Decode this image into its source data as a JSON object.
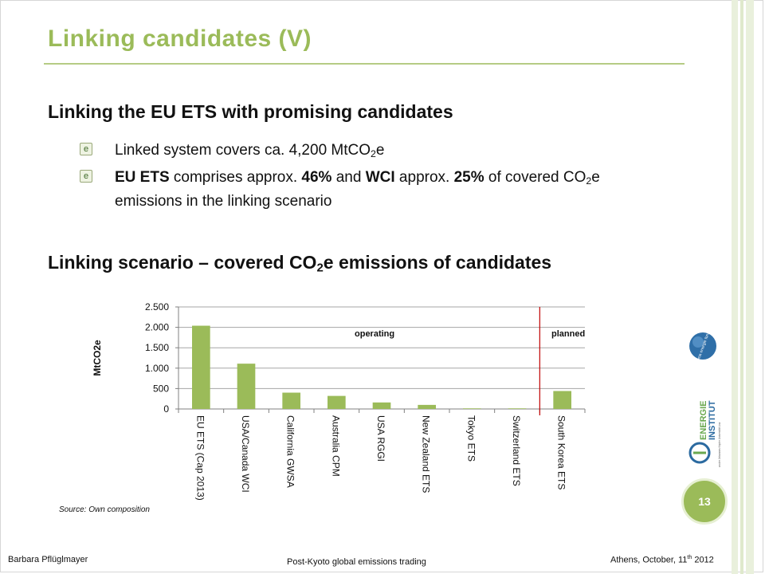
{
  "slide": {
    "title": "Linking  candidates  (V)",
    "heading1": "Linking the EU ETS with promising candidates",
    "bullet1": {
      "pre": "Linked system covers ca. 4,200 MtCO",
      "sub": "2",
      "post": "e"
    },
    "bullet2": {
      "b1": "EU ETS",
      "t1": " comprises approx. ",
      "b2": "46%",
      "t2": " and ",
      "b3": "WCI",
      "t3": " approx. ",
      "b4": "25%",
      "t4": " of covered CO",
      "sub": "2",
      "t5": "e",
      "line2": "emissions in the linking scenario"
    },
    "heading2": {
      "pre": "Linking scenario – covered CO",
      "sub": "2",
      "post": "e emissions of candidates"
    },
    "source": "Source: Own composition",
    "page_number": "13"
  },
  "footer": {
    "author": "Barbara Pflüglmayer",
    "center": "Post-Kyoto global emissions trading",
    "date_pre": "Athens, October, 11",
    "date_sup": "th",
    "date_post": " 2012"
  },
  "logos": {
    "logo1": "klima energie fonds",
    "logo2_line1": "ENERGIE",
    "logo2_line2": "INSTITUT",
    "logo2_small": "an der Johannes Kepler Universität Linz"
  },
  "colors": {
    "accent": "#9bbb59",
    "bar": "#9bbb59",
    "divider": "#c00000",
    "grid": "#a6a6a6"
  },
  "chart_data": {
    "type": "bar",
    "categories": [
      "EU ETS (Cap 2013)",
      "USA/Canada WCI",
      "California GWSA",
      "Australia CPM",
      "USA RGGI",
      "New Zealand ETS",
      "Tokyo ETS",
      "Switzerland ETS",
      "South Korea ETS"
    ],
    "values": [
      2040,
      1110,
      400,
      320,
      160,
      100,
      15,
      15,
      440
    ],
    "ylabel": "MtCO2e",
    "ylim": [
      0,
      2500
    ],
    "yticks": [
      0,
      500,
      1000,
      1500,
      2000,
      2500
    ],
    "ytick_labels": [
      "0",
      "500",
      "1.000",
      "1.500",
      "2.000",
      "2.500"
    ],
    "annotations": [
      "operating",
      "planned"
    ],
    "divider_after_category": 7,
    "grid": true
  }
}
